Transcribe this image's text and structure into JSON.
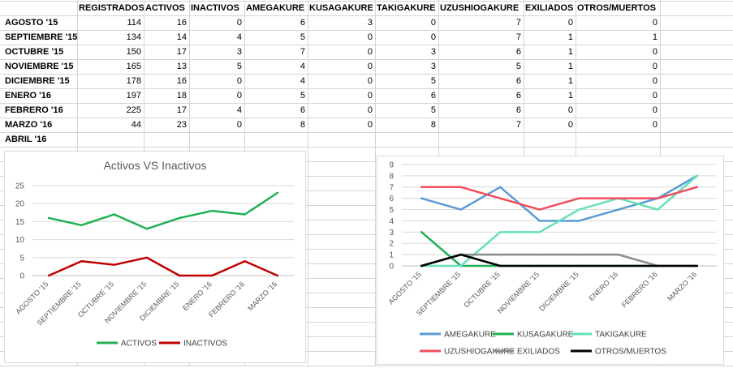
{
  "table": {
    "headers": [
      "REGISTRADOS",
      "ACTIVOS",
      "INACTIVOS",
      "AMEGAKURE",
      "KUSAGAKURE",
      "TAKIGAKURE",
      "UZUSHIOGAKURE",
      "EXILIADOS",
      "OTROS/MUERTOS"
    ],
    "row_labels": [
      "AGOSTO '15",
      "SEPTIEMBRE '15",
      "OCTUBRE '15",
      "NOVIEMBRE '15",
      "DICIEMBRE '15",
      "ENERO '16",
      "FEBRERO '16",
      "MARZO '16",
      "ABRIL '16"
    ],
    "rows": [
      [
        "114",
        "16",
        "0",
        "6",
        "3",
        "0",
        "7",
        "0",
        "0"
      ],
      [
        "134",
        "14",
        "4",
        "5",
        "0",
        "0",
        "7",
        "1",
        "1"
      ],
      [
        "150",
        "17",
        "3",
        "7",
        "0",
        "3",
        "6",
        "1",
        "0"
      ],
      [
        "165",
        "13",
        "5",
        "4",
        "0",
        "3",
        "5",
        "1",
        "0"
      ],
      [
        "178",
        "16",
        "0",
        "4",
        "0",
        "5",
        "6",
        "1",
        "0"
      ],
      [
        "197",
        "18",
        "0",
        "5",
        "0",
        "6",
        "6",
        "1",
        "0"
      ],
      [
        "225",
        "17",
        "4",
        "6",
        "0",
        "5",
        "6",
        "0",
        "0"
      ],
      [
        "44",
        "23",
        "0",
        "8",
        "0",
        "8",
        "7",
        "0",
        "0"
      ],
      [
        "",
        "",
        "",
        "",
        "",
        "",
        "",
        "",
        ""
      ]
    ]
  },
  "chart_data": [
    {
      "type": "line",
      "title": "Activos VS Inactivos",
      "categories": [
        "AGOSTO '15",
        "SEPTIEMBRE '15",
        "OCTUBRE '15",
        "NOVIEMBRE '15",
        "DICIEMBRE '15",
        "ENERO '16",
        "FEBRERO '16",
        "MARZO '16"
      ],
      "ylim": [
        0,
        25
      ],
      "yticks": [
        "0",
        "5",
        "10",
        "15",
        "20",
        "25"
      ],
      "grid": true,
      "legend": "bottom",
      "series": [
        {
          "name": "ACTIVOS",
          "color": "#1fb053",
          "values": [
            16,
            14,
            17,
            13,
            16,
            18,
            17,
            23
          ]
        },
        {
          "name": "INACTIVOS",
          "color": "#c00000",
          "values": [
            0,
            4,
            3,
            5,
            0,
            0,
            4,
            0
          ]
        }
      ]
    },
    {
      "type": "line",
      "title": "",
      "categories": [
        "AGOSTO '15",
        "SEPTIEMBRE '15",
        "OCTUBRE '15",
        "NOVIEMBRE '15",
        "DICIEMBRE '15",
        "ENERO '16",
        "FEBRERO '16",
        "MARZO '16"
      ],
      "ylim": [
        0,
        9
      ],
      "yticks": [
        "0",
        "1",
        "2",
        "3",
        "4",
        "5",
        "6",
        "7",
        "8",
        "9"
      ],
      "grid": true,
      "legend": "bottom",
      "series": [
        {
          "name": "AMEGAKURE",
          "color": "#5b9bd5",
          "values": [
            6,
            5,
            7,
            4,
            4,
            5,
            6,
            8
          ]
        },
        {
          "name": "KUSAGAKURE",
          "color": "#1fb053",
          "values": [
            3,
            0,
            0,
            0,
            0,
            0,
            0,
            0
          ]
        },
        {
          "name": "TAKIGAKURE",
          "color": "#66e0b8",
          "values": [
            0,
            0,
            3,
            3,
            5,
            6,
            5,
            8
          ]
        },
        {
          "name": "UZUSHIOGAKURE",
          "color": "#f24e5e",
          "values": [
            7,
            7,
            6,
            5,
            6,
            6,
            6,
            7
          ]
        },
        {
          "name": "EXILIADOS",
          "color": "#8c8c8c",
          "values": [
            0,
            1,
            1,
            1,
            1,
            1,
            0,
            0
          ]
        },
        {
          "name": "OTROS/MUERTOS",
          "color": "#000000",
          "values": [
            0,
            1,
            0,
            0,
            0,
            0,
            0,
            0
          ]
        }
      ]
    }
  ]
}
